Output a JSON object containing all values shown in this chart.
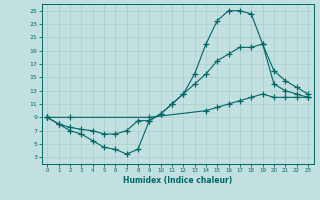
{
  "title": "",
  "xlabel": "Humidex (Indice chaleur)",
  "ylabel": "",
  "bg_color": "#c2e0e0",
  "line_color": "#006666",
  "xlim": [
    -0.5,
    23.5
  ],
  "ylim": [
    2,
    26
  ],
  "xticks": [
    0,
    1,
    2,
    3,
    4,
    5,
    6,
    7,
    8,
    9,
    10,
    11,
    12,
    13,
    14,
    15,
    16,
    17,
    18,
    19,
    20,
    21,
    22,
    23
  ],
  "yticks": [
    3,
    5,
    7,
    9,
    11,
    13,
    15,
    17,
    19,
    21,
    23,
    25
  ],
  "line1_x": [
    0,
    1,
    2,
    3,
    4,
    5,
    6,
    7,
    8,
    9,
    10,
    11,
    12,
    13,
    14,
    15,
    16,
    17,
    18,
    19,
    20,
    21,
    22,
    23
  ],
  "line1_y": [
    9,
    8,
    7,
    6.5,
    5.5,
    4.5,
    4.2,
    3.5,
    4.2,
    8.5,
    9.5,
    11,
    12.5,
    15.5,
    20,
    23.5,
    25,
    25,
    24.5,
    20,
    14,
    13,
    12.5,
    12
  ],
  "line2_x": [
    0,
    1,
    2,
    3,
    4,
    5,
    6,
    7,
    8,
    9,
    10,
    11,
    12,
    13,
    14,
    15,
    16,
    17,
    18,
    19,
    20,
    21,
    22,
    23
  ],
  "line2_y": [
    9,
    8,
    7.5,
    7.2,
    7,
    6.5,
    6.5,
    7,
    8.5,
    8.5,
    9.5,
    11,
    12.5,
    14,
    15.5,
    17.5,
    18.5,
    19.5,
    19.5,
    20,
    16,
    14.5,
    13.5,
    12.5
  ],
  "line3_x": [
    0,
    2,
    9,
    14,
    15,
    16,
    17,
    18,
    19,
    20,
    21,
    22,
    23
  ],
  "line3_y": [
    9,
    9,
    9,
    10,
    10.5,
    11,
    11.5,
    12,
    12.5,
    12,
    12,
    12,
    12
  ]
}
